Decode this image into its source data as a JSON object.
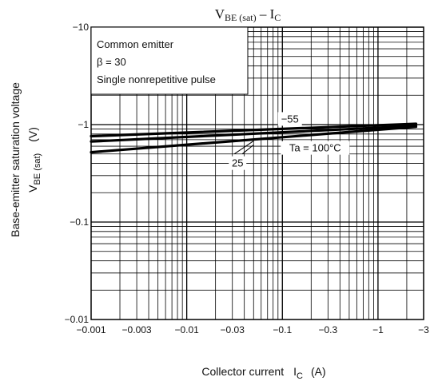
{
  "chart_data": {
    "type": "line",
    "title_main": "V",
    "title_main_sub": "BE (sat)",
    "title_rest": " – I",
    "title_rest_sub": "C",
    "xlabel": "Collector current",
    "xlabel_symbol": "I",
    "xlabel_symbol_sub": "C",
    "xlabel_unit": "(A)",
    "ylabel_line1": "Base-emitter saturation voltage",
    "ylabel_symbol": "V",
    "ylabel_symbol_sub": "BE (sat)",
    "ylabel_unit": "(V)",
    "x_scale": "log",
    "y_scale": "log",
    "xlim": [
      -0.001,
      -3
    ],
    "ylim": [
      -0.01,
      -10
    ],
    "x_ticks": [
      {
        "value": -0.001,
        "label": "−0.001"
      },
      {
        "value": -0.003,
        "label": "−0.003"
      },
      {
        "value": -0.01,
        "label": "−0.01"
      },
      {
        "value": -0.03,
        "label": "−0.03"
      },
      {
        "value": -0.1,
        "label": "−0.1"
      },
      {
        "value": -0.3,
        "label": "−0.3"
      },
      {
        "value": -1,
        "label": "−1"
      },
      {
        "value": -3,
        "label": "−3"
      }
    ],
    "y_ticks": [
      {
        "value": -0.01,
        "label": "−0.01"
      },
      {
        "value": -0.1,
        "label": "−0.1"
      },
      {
        "value": -1,
        "label": "−1"
      },
      {
        "value": -10,
        "label": "−10"
      }
    ],
    "grid": true,
    "legend_box": {
      "lines": [
        "Common emitter",
        "β = 30",
        "Single nonrepetitive pulse"
      ],
      "placement": "top-left"
    },
    "series": [
      {
        "label": "−55",
        "x": [
          -0.001,
          -2.5
        ],
        "y": [
          -0.76,
          -1.02
        ]
      },
      {
        "label": "25",
        "x": [
          -0.001,
          -2.5
        ],
        "y": [
          -0.67,
          -0.97
        ]
      },
      {
        "label": "Ta = 100°C",
        "x": [
          -0.001,
          -2.5
        ],
        "y": [
          -0.52,
          -0.95
        ]
      }
    ],
    "series_labels": [
      {
        "text": "−55",
        "x": -0.12,
        "y": -1.05
      },
      {
        "text": "25",
        "x": -0.034,
        "y": -0.37
      },
      {
        "text": "Ta = 100°C",
        "x": -0.22,
        "y": -0.53
      }
    ]
  }
}
